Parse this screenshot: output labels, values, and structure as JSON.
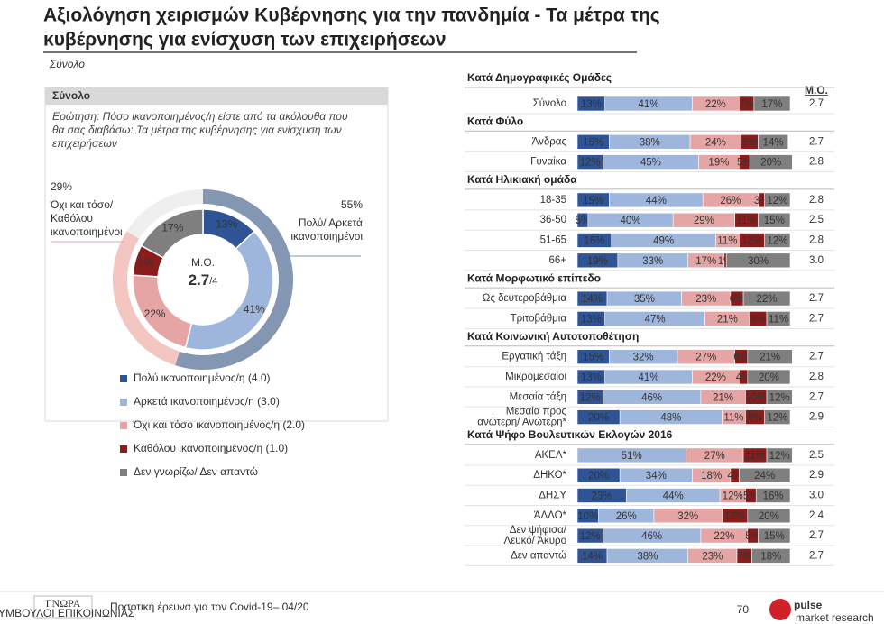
{
  "title": [
    "Αξιολόγηση χειρισμών Κυβέρνησης για την πανδημία - Τα μέτρα της",
    "κυβέρνησης για ενίσχυση των επιχειρήσεων"
  ],
  "subtitle": "Σύνολο",
  "chart_data": [
    {
      "type": "donut",
      "title": "Σύνολο",
      "question": [
        "Ερώτηση: Πόσο ικανοποιημένος/η είστε από τα ακόλουθα που",
        "θα σας διαβάσω: Τα μέτρα της κυβέρνησης για ενίσχυση των",
        "επιχειρήσεων"
      ],
      "categories": [
        "Πολύ ικανοποιημένος/η (4.0)",
        "Αρκετά ικανοποιημένος/η (3.0)",
        "Όχι και τόσο ικανοποιημένος/η (2.0)",
        "Καθόλου ικανοποιημένος/η (1.0)",
        "Δεν γνωρίζω/ Δεν απαντώ"
      ],
      "values": [
        13,
        41,
        22,
        7,
        17
      ],
      "value_labels": [
        "13%",
        "41%",
        "22%",
        "7%",
        "17%"
      ],
      "colors": [
        "#2f5496",
        "#9fb6dc",
        "#e6a5a5",
        "#8b1c1c",
        "#7f7f7f"
      ],
      "center_label": "Μ.Ο.",
      "center_value": 2.7,
      "center_scale": "/4",
      "groups": [
        {
          "name": [
            "Πολύ/ Αρκετά",
            "ικανοποιημένοι"
          ],
          "value": 55,
          "value_label": "55%",
          "color": "#8396b2"
        },
        {
          "name": [
            "Όχι και τόσο/",
            "Καθόλου",
            "ικανοποιημένοι"
          ],
          "value": 29,
          "value_label": "29%",
          "color": "#f3c6c2"
        }
      ]
    },
    {
      "type": "stacked_bar_h",
      "mean_title": "Μ.Ο.",
      "xlim": [
        0,
        100
      ],
      "colors": [
        "#2f5496",
        "#9fb6dc",
        "#e6a5a5",
        "#8b1c1c",
        "#7f7f7f"
      ],
      "sections": [
        {
          "title": "Κατά Δημογραφικές Ομάδες",
          "rows": [
            {
              "label": [
                "Σύνολο"
              ],
              "values": [
                13,
                41,
                22,
                7,
                17
              ],
              "value_labels": [
                "13%",
                "41%",
                "22%",
                "7%",
                "17%"
              ],
              "mean": 2.7,
              "mean_label": "2.7"
            }
          ]
        },
        {
          "title": "Κατά Φύλο",
          "rows": [
            {
              "label": [
                "Άνδρας"
              ],
              "values": [
                15,
                38,
                24,
                8,
                14
              ],
              "value_labels": [
                "15%",
                "38%",
                "24%",
                "8%",
                "14%"
              ],
              "mean": 2.7,
              "mean_label": "2.7"
            },
            {
              "label": [
                "Γυναίκα"
              ],
              "values": [
                12,
                45,
                19,
                5,
                20
              ],
              "value_labels": [
                "12%",
                "45%",
                "19%",
                "5%",
                "20%"
              ],
              "mean": 2.8,
              "mean_label": "2.8"
            }
          ]
        },
        {
          "title": "Κατά Ηλικιακή ομάδα",
          "rows": [
            {
              "label": [
                "18-35"
              ],
              "values": [
                15,
                44,
                26,
                3,
                12
              ],
              "value_labels": [
                "15%",
                "44%",
                "26%",
                "3%",
                "12%"
              ],
              "mean": 2.8,
              "mean_label": "2.8"
            },
            {
              "label": [
                "36-50"
              ],
              "values": [
                5,
                40,
                29,
                11,
                15
              ],
              "value_labels": [
                "5%",
                "40%",
                "29%",
                "11%",
                "15%"
              ],
              "mean": 2.5,
              "mean_label": "2.5"
            },
            {
              "label": [
                "51-65"
              ],
              "values": [
                16,
                49,
                11,
                12,
                12
              ],
              "value_labels": [
                "16%",
                "49%",
                "11%",
                "12%",
                "12%"
              ],
              "mean": 2.8,
              "mean_label": "2.8"
            },
            {
              "label": [
                "66+"
              ],
              "values": [
                19,
                33,
                17,
                1,
                30
              ],
              "value_labels": [
                "19%",
                "33%",
                "17%",
                "1%",
                "30%"
              ],
              "mean": 3.0,
              "mean_label": "3.0"
            }
          ]
        },
        {
          "title": "Κατά Μορφωτικό επίπεδο",
          "rows": [
            {
              "label": [
                "Ως δευτεροβάθμια"
              ],
              "values": [
                14,
                35,
                23,
                6,
                22
              ],
              "value_labels": [
                "14%",
                "35%",
                "23%",
                "6%",
                "22%"
              ],
              "mean": 2.7,
              "mean_label": "2.7"
            },
            {
              "label": [
                "Τριτοβάθμια"
              ],
              "values": [
                13,
                47,
                21,
                8,
                11
              ],
              "value_labels": [
                "13%",
                "47%",
                "21%",
                "8%",
                "11%"
              ],
              "mean": 2.7,
              "mean_label": "2.7"
            }
          ]
        },
        {
          "title": "Κατά Κοινωνική Αυτοτοποθέτηση",
          "rows": [
            {
              "label": [
                "Εργατική τάξη"
              ],
              "values": [
                15,
                32,
                27,
                6,
                21
              ],
              "value_labels": [
                "15%",
                "32%",
                "27%",
                "6%",
                "21%"
              ],
              "mean": 2.7,
              "mean_label": "2.7"
            },
            {
              "label": [
                "Μικρομεσαίοι"
              ],
              "values": [
                13,
                41,
                22,
                4,
                20
              ],
              "value_labels": [
                "13%",
                "41%",
                "22%",
                "4%",
                "20%"
              ],
              "mean": 2.8,
              "mean_label": "2.8"
            },
            {
              "label": [
                "Μεσαία τάξη"
              ],
              "values": [
                12,
                46,
                21,
                10,
                12
              ],
              "value_labels": [
                "12%",
                "46%",
                "21%",
                "10%",
                "12%"
              ],
              "mean": 2.7,
              "mean_label": "2.7"
            },
            {
              "label": [
                "Μεσαία προς",
                "ανώτερη/ Ανώτερη*"
              ],
              "values": [
                20,
                48,
                11,
                9,
                12
              ],
              "value_labels": [
                "20%",
                "48%",
                "11%",
                "9%",
                "12%"
              ],
              "mean": 2.9,
              "mean_label": "2.9"
            }
          ]
        },
        {
          "title": "Κατά Ψήφο Βουλευτικών Εκλογών 2016",
          "rows": [
            {
              "label": [
                "ΑΚΕΛ*"
              ],
              "values": [
                null,
                51,
                27,
                11,
                12
              ],
              "value_labels": [
                null,
                "51%",
                "27%",
                "11%",
                "12%"
              ],
              "mean": 2.5,
              "mean_label": "2.5"
            },
            {
              "label": [
                "ΔΗΚΟ*"
              ],
              "values": [
                20,
                34,
                18,
                4,
                24
              ],
              "value_labels": [
                "20%",
                "34%",
                "18%",
                "4%",
                "24%"
              ],
              "mean": 2.9,
              "mean_label": "2.9"
            },
            {
              "label": [
                "ΔΗΣΥ"
              ],
              "values": [
                23,
                44,
                12,
                5,
                16
              ],
              "value_labels": [
                "23%",
                "44%",
                "12%",
                "5%",
                "16%"
              ],
              "mean": 3.0,
              "mean_label": "3.0"
            },
            {
              "label": [
                "ΆΛΛΟ*"
              ],
              "values": [
                10,
                26,
                32,
                12,
                20
              ],
              "value_labels": [
                "10%",
                "26%",
                "32%",
                "12%",
                "20%"
              ],
              "mean": 2.4,
              "mean_label": "2.4"
            },
            {
              "label": [
                "Δεν ψήφισα/",
                "Λευκό/ Άκυρο"
              ],
              "values": [
                12,
                46,
                22,
                5,
                15
              ],
              "value_labels": [
                "12%",
                "46%",
                "22%",
                "5%",
                "15%"
              ],
              "mean": 2.7,
              "mean_label": "2.7"
            },
            {
              "label": [
                "Δεν απαντώ"
              ],
              "values": [
                14,
                38,
                23,
                7,
                18
              ],
              "value_labels": [
                "14%",
                "38%",
                "23%",
                "7%",
                "18%"
              ],
              "mean": 2.7,
              "mean_label": "2.7"
            }
          ]
        }
      ]
    }
  ],
  "footer": {
    "logo": "ΓΝΩΡΑ",
    "logo_sub": "ΣΥΜΒΟΥΛΟΙ ΕΠΙΚΟΙΝΩΝΙΑΣ",
    "text": "Ποσοτική έρευνα για τον Covid-19– 04/20",
    "page": 70,
    "brand": "pulse",
    "brand_sub": "market research"
  }
}
